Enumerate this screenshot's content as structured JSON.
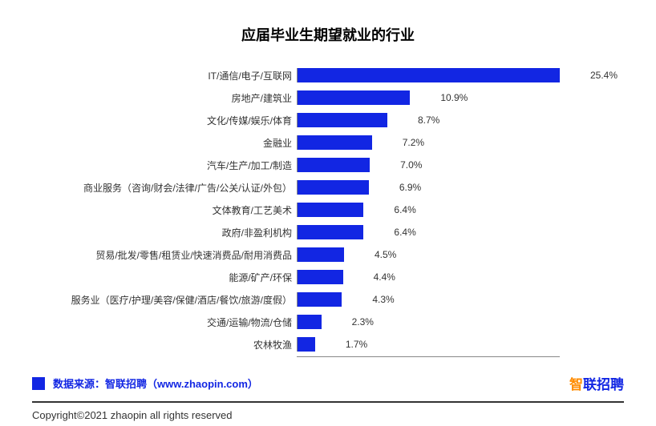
{
  "chart": {
    "type": "bar-horizontal",
    "title": "应届毕业生期望就业的行业",
    "title_fontsize": 18,
    "title_color": "#000000",
    "bar_color": "#1226e3",
    "label_fontsize": 12,
    "value_fontsize": 12,
    "max_value": 25.4,
    "background_color": "#ffffff",
    "axis_color": "#888888",
    "items": [
      {
        "label": "IT/通信/电子/互联网",
        "value": 25.4,
        "display": "25.4%"
      },
      {
        "label": "房地产/建筑业",
        "value": 10.9,
        "display": "10.9%"
      },
      {
        "label": "文化/传媒/娱乐/体育",
        "value": 8.7,
        "display": "8.7%"
      },
      {
        "label": "金融业",
        "value": 7.2,
        "display": "7.2%"
      },
      {
        "label": "汽车/生产/加工/制造",
        "value": 7.0,
        "display": "7.0%"
      },
      {
        "label": "商业服务（咨询/财会/法律/广告/公关/认证/外包）",
        "value": 6.9,
        "display": "6.9%"
      },
      {
        "label": "文体教育/工艺美术",
        "value": 6.4,
        "display": "6.4%"
      },
      {
        "label": "政府/非盈利机构",
        "value": 6.4,
        "display": "6.4%"
      },
      {
        "label": "贸易/批发/零售/租赁业/快速消费品/耐用消费品",
        "value": 4.5,
        "display": "4.5%"
      },
      {
        "label": "能源/矿产/环保",
        "value": 4.4,
        "display": "4.4%"
      },
      {
        "label": "服务业（医疗/护理/美容/保健/酒店/餐饮/旅游/度假）",
        "value": 4.3,
        "display": "4.3%"
      },
      {
        "label": "交通/运输/物流/仓储",
        "value": 2.3,
        "display": "2.3%"
      },
      {
        "label": "农林牧渔",
        "value": 1.7,
        "display": "1.7%"
      }
    ]
  },
  "footer": {
    "source_text": "数据来源：智联招聘（www.zhaopin.com）",
    "source_color": "#1226e3",
    "brand_text_1": "智",
    "brand_text_2": "联招聘",
    "brand_colors": {
      "orange": "#ff8c00",
      "blue": "#1226e3"
    },
    "copyright": "Copyright©2021 zhaopin all rights reserved",
    "divider_color": "#333333"
  }
}
